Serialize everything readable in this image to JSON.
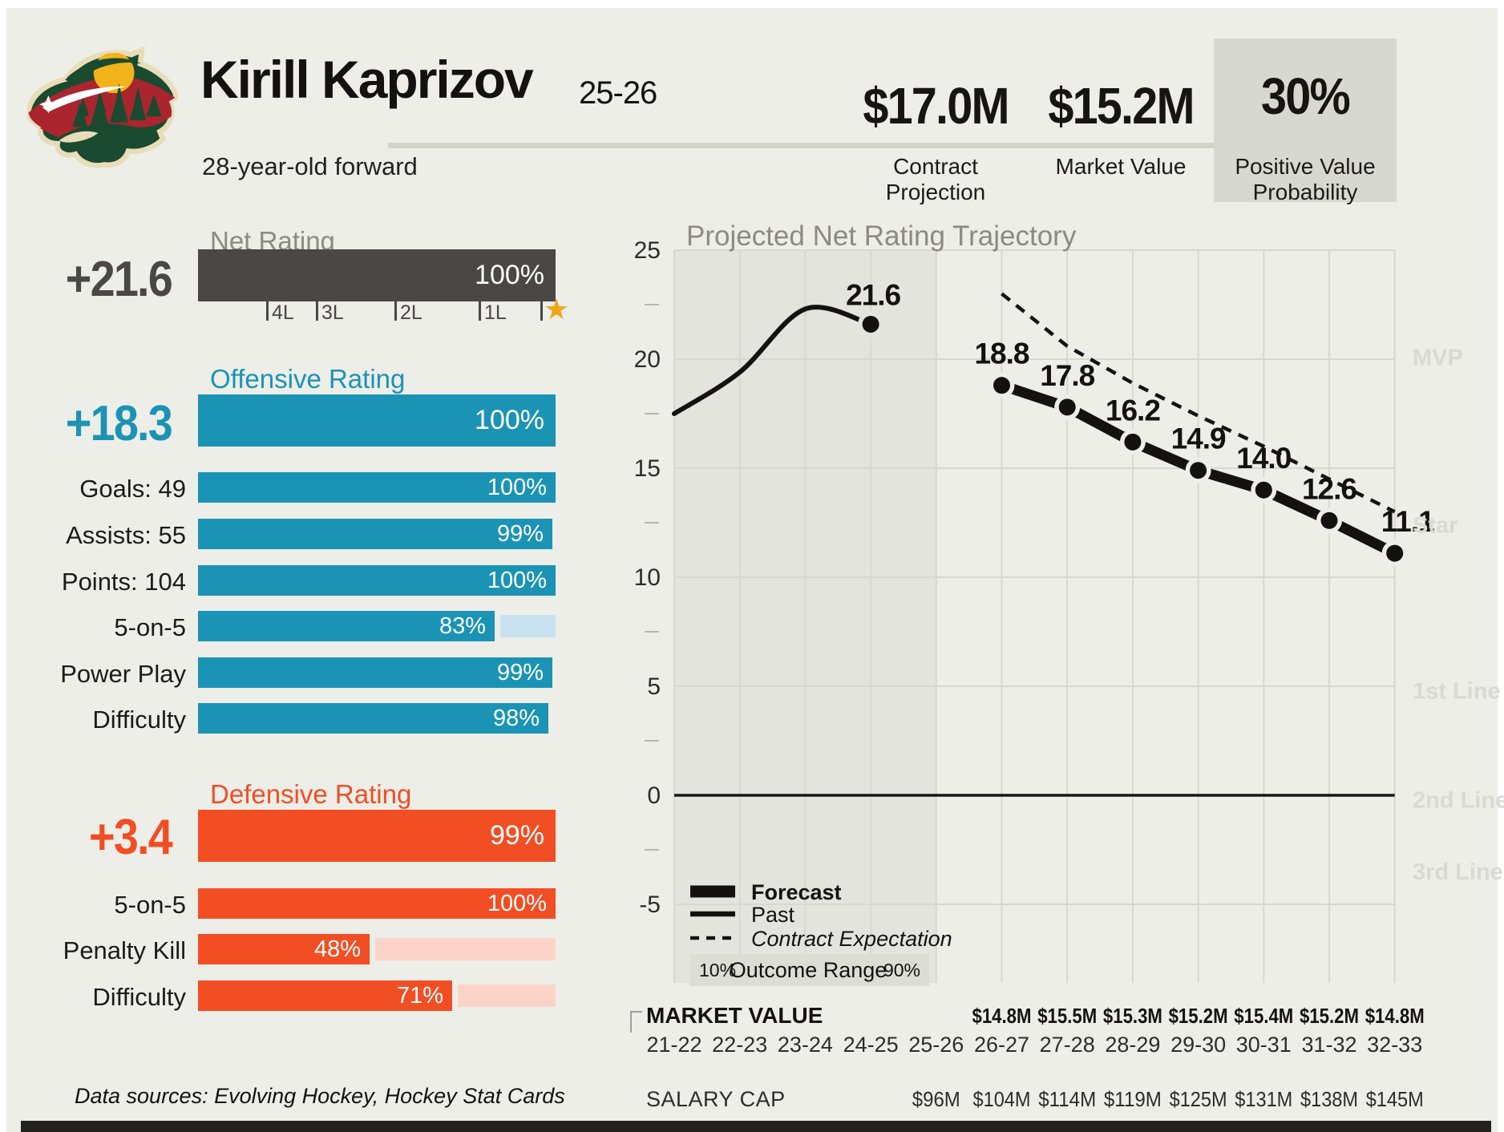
{
  "header": {
    "player_name": "Kirill Kaprizov",
    "season": "25-26",
    "subtitle": "28-year-old forward",
    "contract": {
      "value": "$17.0M",
      "label_line1": "Contract",
      "label_line2": "Projection"
    },
    "market": {
      "value": "$15.2M",
      "label": "Market Value"
    },
    "probability": {
      "value": "30%",
      "label_line1": "Positive Value",
      "label_line2": "Probability"
    }
  },
  "icons": {
    "star": "★",
    "team_logo": "minnesota-wild-logo"
  },
  "colors": {
    "background": "#edeee8",
    "dark": "#4a4744",
    "blue": "#1b93b5",
    "blue_track": "#c8e3ef",
    "red": "#f24e24",
    "red_track": "#fcd3c9",
    "gold": "#f2a71b",
    "band": "#e3e4dd",
    "grid": "#d7d8d0",
    "muted": "#8b8a83",
    "right_label": "#d9dad2",
    "ink": "#131210"
  },
  "net_rating": {
    "title": "Net Rating",
    "value": "+21.6",
    "percentile": "100%",
    "ticks": [
      "4L",
      "3L",
      "2L",
      "1L"
    ]
  },
  "offensive": {
    "title": "Offensive Rating",
    "value": "+18.3",
    "percentile": "100%",
    "rows": [
      {
        "label": "Goals: 49",
        "display": "100%",
        "pct": 100,
        "track": false
      },
      {
        "label": "Assists: 55",
        "display": "99%",
        "pct": 99,
        "track": false
      },
      {
        "label": "Points: 104",
        "display": "100%",
        "pct": 100,
        "track": false
      },
      {
        "label": "5-on-5",
        "display": "83%",
        "pct": 83,
        "track": true
      },
      {
        "label": "Power Play",
        "display": "99%",
        "pct": 99,
        "track": false
      },
      {
        "label": "Difficulty",
        "display": "98%",
        "pct": 98,
        "track": false
      }
    ]
  },
  "defensive": {
    "title": "Defensive Rating",
    "value": "+3.4",
    "percentile": "99%",
    "rows": [
      {
        "label": "5-on-5",
        "display": "100%",
        "pct": 100,
        "track": false
      },
      {
        "label": "Penalty Kill",
        "display": "48%",
        "pct": 48,
        "track": true
      },
      {
        "label": "Difficulty",
        "display": "71%",
        "pct": 71,
        "track": true
      }
    ]
  },
  "chart_data": {
    "type": "line",
    "title": "Projected Net Rating Trajectory",
    "x_categories": [
      "21-22",
      "22-23",
      "23-24",
      "24-25",
      "25-26",
      "26-27",
      "27-28",
      "28-29",
      "29-30",
      "30-31",
      "31-32",
      "32-33"
    ],
    "yticks": [
      25,
      20,
      15,
      10,
      5,
      0,
      -5
    ],
    "ylim": [
      -5,
      25
    ],
    "grid": true,
    "shaded_region_x": [
      "21-22",
      "25-26"
    ],
    "series": [
      {
        "name": "Past",
        "style": "solid-thin",
        "x": [
          "21-22",
          "22-23",
          "23-24",
          "24-25"
        ],
        "values": [
          17.5,
          19.4,
          22.3,
          21.6
        ],
        "end_label": "21.6"
      },
      {
        "name": "Forecast",
        "style": "solid-thick",
        "labeled": true,
        "x": [
          "26-27",
          "27-28",
          "28-29",
          "29-30",
          "30-31",
          "31-32",
          "32-33"
        ],
        "values": [
          18.8,
          17.8,
          16.2,
          14.9,
          14.0,
          12.6,
          11.1
        ]
      },
      {
        "name": "Contract Expectation",
        "style": "dashed",
        "x": [
          "26-27",
          "27-28",
          "28-29",
          "29-30",
          "30-31",
          "31-32",
          "32-33"
        ],
        "values": [
          23.0,
          20.6,
          18.9,
          17.4,
          16.0,
          14.5,
          13.0
        ]
      }
    ],
    "right_labels": [
      {
        "text": "MVP",
        "value": 20.1
      },
      {
        "text": "Star",
        "value": 12.4
      },
      {
        "text": "1st Line",
        "value": 4.8
      },
      {
        "text": "2nd Line",
        "value": -0.2
      },
      {
        "text": "3rd Line",
        "value": -3.5
      }
    ],
    "legend": {
      "forecast": "Forecast",
      "past": "Past",
      "contract": "Contract Expectation",
      "outcome_range": "Outcome Range",
      "p10": "10%",
      "p90": "90%"
    }
  },
  "market_table": {
    "market_label": "MARKET VALUE",
    "salary_label": "SALARY CAP",
    "seasons": [
      "21-22",
      "22-23",
      "23-24",
      "24-25",
      "25-26",
      "26-27",
      "27-28",
      "28-29",
      "29-30",
      "30-31",
      "31-32",
      "32-33"
    ],
    "market_values": [
      "",
      "",
      "",
      "",
      "",
      "$14.8M",
      "$15.5M",
      "$15.3M",
      "$15.2M",
      "$15.4M",
      "$15.2M",
      "$14.8M"
    ],
    "salary_caps": [
      "",
      "",
      "",
      "",
      "$96M",
      "$104M",
      "$114M",
      "$119M",
      "$125M",
      "$131M",
      "$138M",
      "$145M"
    ]
  },
  "footer": {
    "sources": "Data sources: Evolving Hockey, Hockey Stat Cards"
  }
}
